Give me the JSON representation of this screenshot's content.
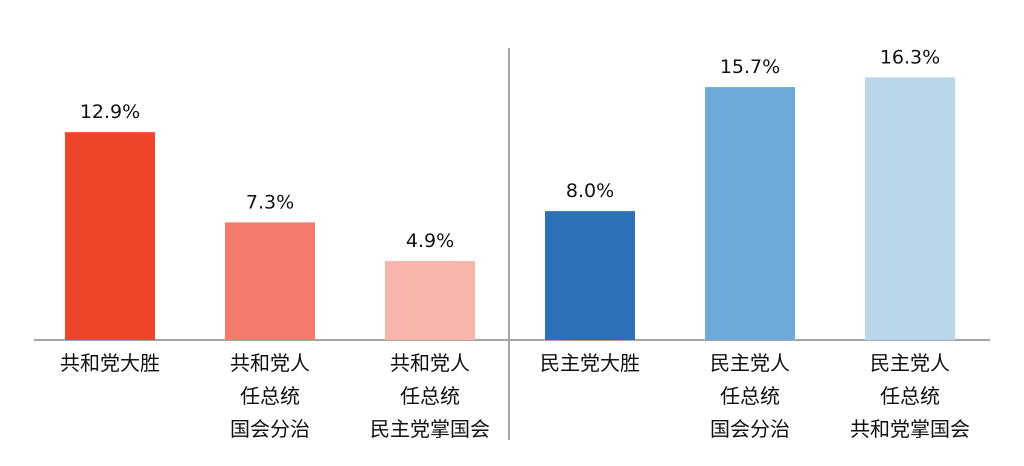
{
  "chart_data": {
    "type": "bar",
    "categories": [
      [
        "共和党大胜"
      ],
      [
        "共和党人",
        "任总统",
        "国会分治"
      ],
      [
        "共和党人",
        "任总统",
        "民主党掌国会"
      ],
      [
        "民主党大胜"
      ],
      [
        "民主党人",
        "任总统",
        "国会分治"
      ],
      [
        "民主党人",
        "任总统",
        "共和党掌国会"
      ]
    ],
    "values": [
      12.9,
      7.3,
      4.9,
      8.0,
      15.7,
      16.3
    ],
    "value_labels": [
      "12.9%",
      "7.3%",
      "4.9%",
      "8.0%",
      "15.7%",
      "16.3%"
    ],
    "colors": [
      "#ee442a",
      "#f47a6b",
      "#f9b4ab",
      "#2c70b8",
      "#6ea9dc",
      "#b9d6ea"
    ],
    "ylim": [
      0,
      18
    ],
    "grid": false,
    "legend": "none",
    "divider_after_index": 2
  }
}
